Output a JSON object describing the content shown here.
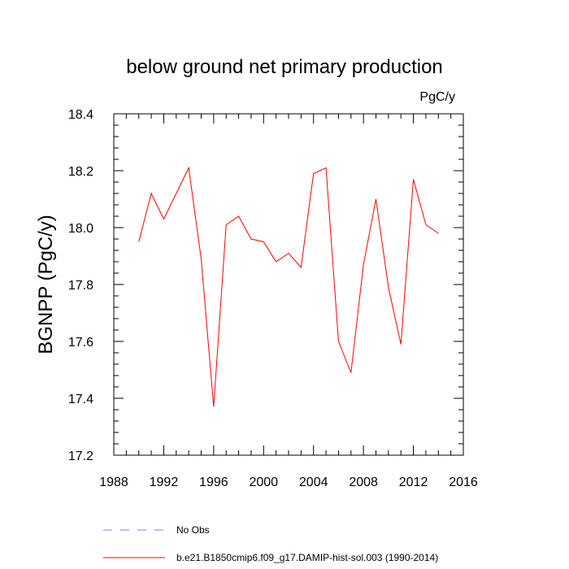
{
  "chart_data": {
    "type": "line",
    "title": "below ground net primary production",
    "units": "PgC/y",
    "ylabel": "BGNPP  (PgC/y)",
    "xlabel": "",
    "xlim": [
      1988,
      2016
    ],
    "ylim": [
      17.2,
      18.4
    ],
    "xticks": [
      1988,
      1992,
      1996,
      2000,
      2004,
      2008,
      2012,
      2016
    ],
    "xtick_labels": [
      "1988",
      "1992",
      "1996",
      "2000",
      "2004",
      "2008",
      "2012",
      "2016"
    ],
    "yticks": [
      17.2,
      17.4,
      17.6,
      17.8,
      18.0,
      18.2,
      18.4
    ],
    "ytick_labels": [
      "17.2",
      "17.4",
      "17.6",
      "17.8",
      "18.0",
      "18.2",
      "18.4"
    ],
    "grid": false,
    "legend_position": "bottom",
    "series": [
      {
        "name": "b.e21.B1850cmip6.f09_g17.DAMIP-hist-sol.003 (1990-2014)",
        "color": "#ff0000",
        "style": "solid",
        "x": [
          1990,
          1991,
          1992,
          1993,
          1994,
          1995,
          1996,
          1997,
          1998,
          1999,
          2000,
          2001,
          2002,
          2003,
          2004,
          2005,
          2006,
          2007,
          2008,
          2009,
          2010,
          2011,
          2012,
          2013,
          2014
        ],
        "y": [
          17.95,
          18.12,
          18.03,
          18.12,
          18.21,
          17.89,
          17.37,
          18.01,
          18.04,
          17.96,
          17.95,
          17.88,
          17.91,
          17.86,
          18.19,
          18.21,
          17.6,
          17.49,
          17.87,
          18.1,
          17.79,
          17.59,
          18.17,
          18.01,
          17.98
        ]
      }
    ],
    "legend": [
      {
        "label": "No Obs",
        "color": "#8080ff",
        "style": "dashed"
      },
      {
        "label": "b.e21.B1850cmip6.f09_g17.DAMIP-hist-sol.003 (1990-2014)",
        "color": "#ff0000",
        "style": "solid"
      }
    ]
  }
}
